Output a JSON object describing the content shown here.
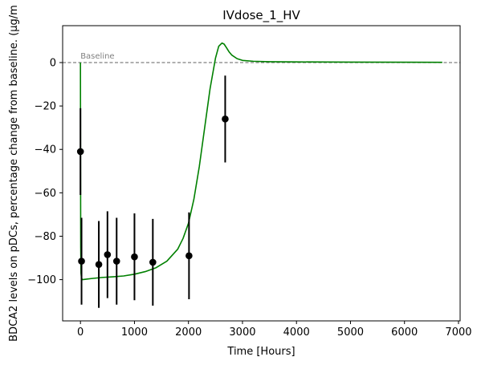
{
  "chart_data": {
    "type": "line",
    "title": "IVdose_1_HV",
    "xlabel": "Time [Hours]",
    "ylabel": "BDCA2 levels on pDCs, percentage change from baseline. (µg/m",
    "xlim": [
      -330,
      7030
    ],
    "ylim": [
      -119,
      17
    ],
    "x_ticks": [
      0,
      1000,
      2000,
      3000,
      4000,
      5000,
      6000,
      7000
    ],
    "y_ticks": [
      0,
      -20,
      -40,
      -60,
      -80,
      -100
    ],
    "grid": false,
    "baseline": {
      "y": 0,
      "label": "Baseline",
      "color": "#808080"
    },
    "series": [
      {
        "type": "line",
        "color": "#008000",
        "x": [
          0,
          2,
          5,
          10,
          20,
          40,
          100,
          200,
          400,
          600,
          800,
          1000,
          1200,
          1400,
          1600,
          1800,
          1900,
          2000,
          2100,
          2200,
          2300,
          2400,
          2500,
          2560,
          2620,
          2660,
          2700,
          2750,
          2800,
          2900,
          3000,
          3200,
          3500,
          4000,
          5000,
          6000,
          6700
        ],
        "y": [
          0,
          -50,
          -85,
          -97,
          -99.5,
          -100,
          -99.8,
          -99.5,
          -99,
          -98.7,
          -98.3,
          -97.5,
          -96.3,
          -94.5,
          -91.5,
          -86,
          -81,
          -74,
          -63,
          -48,
          -30,
          -12,
          2,
          7.5,
          9,
          8.5,
          7,
          5,
          3.5,
          1.8,
          1,
          0.6,
          0.4,
          0.3,
          0.2,
          0.15,
          0.1
        ]
      },
      {
        "type": "errorbar",
        "color": "#000000",
        "points": [
          {
            "x": 0,
            "y": -41,
            "err": 20
          },
          {
            "x": 20,
            "y": -91.5,
            "err": 20
          },
          {
            "x": 340,
            "y": -93,
            "err": 20
          },
          {
            "x": 500,
            "y": -88.5,
            "err": 20
          },
          {
            "x": 670,
            "y": -91.5,
            "err": 20
          },
          {
            "x": 1000,
            "y": -89.5,
            "err": 20
          },
          {
            "x": 1340,
            "y": -92,
            "err": 20
          },
          {
            "x": 2010,
            "y": -89,
            "err": 20
          },
          {
            "x": 2680,
            "y": -26,
            "err": 20
          }
        ]
      }
    ]
  }
}
